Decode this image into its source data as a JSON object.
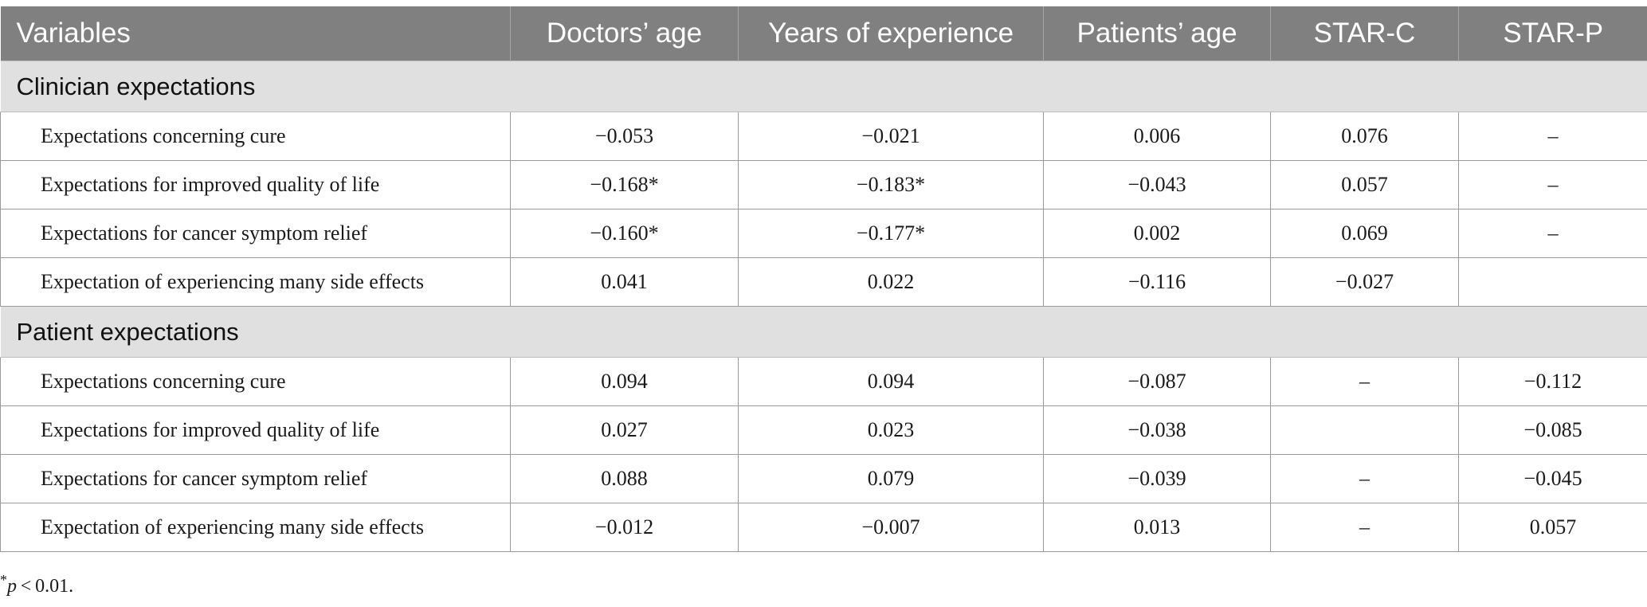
{
  "table": {
    "headers": [
      "Variables",
      "Doctors’ age",
      "Years of experience",
      "Patients’ age",
      "STAR-C",
      "STAR-P"
    ],
    "sections": [
      {
        "title": "Clinician expectations",
        "rows": [
          [
            "Expectations concerning cure",
            "−0.053",
            "−0.021",
            "0.006",
            "0.076",
            "–"
          ],
          [
            "Expectations for improved quality of life",
            "−0.168*",
            "−0.183*",
            "−0.043",
            "0.057",
            "–"
          ],
          [
            "Expectations for cancer symptom relief",
            "−0.160*",
            "−0.177*",
            "0.002",
            "0.069",
            "–"
          ],
          [
            "Expectation of experiencing many side effects",
            "0.041",
            "0.022",
            "−0.116",
            "−0.027",
            ""
          ]
        ]
      },
      {
        "title": "Patient expectations",
        "rows": [
          [
            "Expectations concerning cure",
            "0.094",
            "0.094",
            "−0.087",
            "–",
            "−0.112"
          ],
          [
            "Expectations for improved quality of life",
            "0.027",
            "0.023",
            "−0.038",
            "",
            "−0.085"
          ],
          [
            "Expectations for cancer symptom relief",
            "0.088",
            "0.079",
            "−0.039",
            "–",
            "−0.045"
          ],
          [
            "Expectation of experiencing many side effects",
            "−0.012",
            "−0.007",
            "0.013",
            "–",
            "0.057"
          ]
        ]
      }
    ]
  },
  "footnote": {
    "symbol": "*",
    "variable": "p",
    "condition": " < 0.01."
  }
}
